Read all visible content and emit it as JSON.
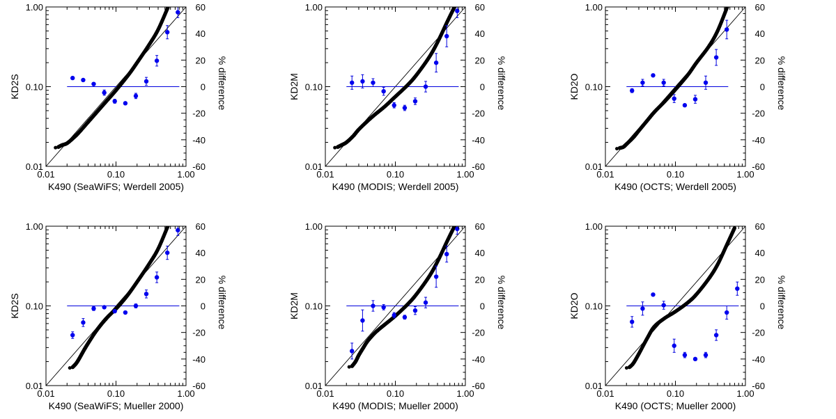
{
  "figure": {
    "axes_style": {
      "left_axis": "log",
      "right_axis_label": "% difference",
      "one_to_one_line": true,
      "zero_line_color": "#0000dd",
      "point_color_blue": "#0000ee",
      "point_color_black": "#000000"
    }
  },
  "chart_data": [
    {
      "type": "scatter",
      "title": "",
      "xlabel": "K490 (SeaWiFS; Werdell 2005)",
      "ylabel": "KD2S",
      "y2label": "% difference",
      "xscale": "log",
      "yscale": "log",
      "xlim": [
        0.01,
        1.0
      ],
      "ylim": [
        0.01,
        1.0
      ],
      "y2lim": [
        -60,
        60
      ],
      "xticks": [
        "0.01",
        "0.10",
        "1.00"
      ],
      "yticks": [
        "0.01",
        "0.10",
        "1.00"
      ],
      "y2ticks": [
        "-60",
        "-40",
        "-20",
        "0",
        "20",
        "40",
        "60"
      ],
      "series": [
        {
          "role": "scatter",
          "x": [
            0.015,
            0.017,
            0.02,
            0.025,
            0.03,
            0.04,
            0.05,
            0.07,
            0.1,
            0.15,
            0.2,
            0.3,
            0.4,
            0.55
          ],
          "y": [
            0.0175,
            0.0185,
            0.0195,
            0.023,
            0.027,
            0.036,
            0.045,
            0.063,
            0.09,
            0.14,
            0.2,
            0.34,
            0.52,
            0.98
          ]
        },
        {
          "role": "percent_difference",
          "x": [
            0.024,
            0.034,
            0.048,
            0.068,
            0.096,
            0.136,
            0.192,
            0.271,
            0.383,
            0.541,
            0.765
          ],
          "y": [
            6.5,
            5,
            2,
            -4.5,
            -11,
            -12.5,
            -7,
            4,
            19.5,
            41,
            56
          ],
          "err": [
            1,
            1,
            1,
            2,
            1.5,
            1,
            2,
            3,
            4,
            5,
            4
          ]
        }
      ]
    },
    {
      "type": "scatter",
      "title": "",
      "xlabel": "K490 (MODIS; Werdell 2005)",
      "ylabel": "KD2M",
      "y2label": "% difference",
      "xscale": "log",
      "yscale": "log",
      "xlim": [
        0.01,
        1.0
      ],
      "ylim": [
        0.01,
        1.0
      ],
      "y2lim": [
        -60,
        60
      ],
      "xticks": [
        "0.01",
        "0.10",
        "1.00"
      ],
      "yticks": [
        "0.01",
        "0.10",
        "1.00"
      ],
      "y2ticks": [
        "-60",
        "-40",
        "-20",
        "0",
        "20",
        "40",
        "60"
      ],
      "series": [
        {
          "role": "scatter",
          "x": [
            0.015,
            0.017,
            0.02,
            0.025,
            0.03,
            0.04,
            0.05,
            0.07,
            0.1,
            0.15,
            0.2,
            0.3,
            0.4,
            0.55,
            0.7
          ],
          "y": [
            0.0175,
            0.0185,
            0.02,
            0.024,
            0.029,
            0.037,
            0.044,
            0.056,
            0.075,
            0.105,
            0.14,
            0.23,
            0.36,
            0.65,
            1.0
          ]
        },
        {
          "role": "percent_difference",
          "x": [
            0.024,
            0.034,
            0.048,
            0.068,
            0.096,
            0.136,
            0.192,
            0.271,
            0.383,
            0.541,
            0.765
          ],
          "y": [
            3,
            4,
            3,
            -3.5,
            -14,
            -16,
            -11,
            0,
            18,
            38,
            57
          ],
          "err": [
            5,
            5,
            3,
            3,
            2,
            2,
            2.5,
            4,
            7,
            8,
            5
          ]
        }
      ]
    },
    {
      "type": "scatter",
      "title": "",
      "xlabel": "K490 (OCTS; Werdell 2005)",
      "ylabel": "KD2O",
      "y2label": "% difference",
      "xscale": "log",
      "yscale": "log",
      "xlim": [
        0.01,
        1.0
      ],
      "ylim": [
        0.01,
        1.0
      ],
      "y2lim": [
        -60,
        60
      ],
      "xticks": [
        "0.01",
        "0.10",
        "1.00"
      ],
      "yticks": [
        "0.01",
        "0.10",
        "1.00"
      ],
      "y2ticks": [
        "-60",
        "-40",
        "-20",
        "0",
        "20",
        "40",
        "60"
      ],
      "series": [
        {
          "role": "scatter",
          "x": [
            0.016,
            0.018,
            0.02,
            0.025,
            0.03,
            0.04,
            0.05,
            0.07,
            0.1,
            0.15,
            0.2,
            0.3,
            0.4,
            0.55
          ],
          "y": [
            0.017,
            0.0175,
            0.019,
            0.023,
            0.028,
            0.038,
            0.048,
            0.065,
            0.092,
            0.14,
            0.2,
            0.32,
            0.5,
            1.0
          ]
        },
        {
          "role": "percent_difference",
          "x": [
            0.024,
            0.034,
            0.048,
            0.068,
            0.096,
            0.136,
            0.192,
            0.271,
            0.383,
            0.541
          ],
          "y": [
            -3,
            3,
            8.5,
            3,
            -9,
            -14,
            -9.5,
            3,
            22,
            43
          ],
          "err": [
            1.5,
            2.5,
            1,
            2.5,
            3,
            1,
            3,
            5,
            6,
            7
          ]
        }
      ]
    },
    {
      "type": "scatter",
      "title": "",
      "xlabel": "K490 (SeaWiFS; Mueller 2000)",
      "ylabel": "KD2S",
      "y2label": "% difference",
      "xscale": "log",
      "yscale": "log",
      "xlim": [
        0.01,
        1.0
      ],
      "ylim": [
        0.01,
        1.0
      ],
      "y2lim": [
        -60,
        60
      ],
      "xticks": [
        "0.01",
        "0.10",
        "1.00"
      ],
      "yticks": [
        "0.01",
        "0.10",
        "1.00"
      ],
      "y2ticks": [
        "-60",
        "-40",
        "-20",
        "0",
        "20",
        "40",
        "60"
      ],
      "series": [
        {
          "role": "scatter",
          "x": [
            0.024,
            0.027,
            0.03,
            0.035,
            0.04,
            0.05,
            0.06,
            0.07,
            0.08,
            0.1,
            0.12,
            0.15,
            0.2,
            0.3,
            0.4,
            0.55
          ],
          "y": [
            0.017,
            0.019,
            0.022,
            0.028,
            0.034,
            0.046,
            0.057,
            0.067,
            0.076,
            0.092,
            0.11,
            0.14,
            0.2,
            0.34,
            0.52,
            1.0
          ]
        },
        {
          "role": "percent_difference",
          "x": [
            0.024,
            0.034,
            0.048,
            0.068,
            0.096,
            0.136,
            0.192,
            0.271,
            0.383,
            0.541,
            0.765
          ],
          "y": [
            -22,
            -12.5,
            -2,
            -1,
            -4,
            -5,
            0,
            9,
            21.5,
            40,
            57
          ],
          "err": [
            2.5,
            3,
            1.5,
            1,
            1,
            1,
            1.5,
            3,
            4,
            5,
            4
          ]
        }
      ]
    },
    {
      "type": "scatter",
      "title": "",
      "xlabel": "K490 (MODIS; Mueller 2000)",
      "ylabel": "KD2M",
      "y2label": "% difference",
      "xscale": "log",
      "yscale": "log",
      "xlim": [
        0.01,
        1.0
      ],
      "ylim": [
        0.01,
        1.0
      ],
      "y2lim": [
        -60,
        60
      ],
      "xticks": [
        "0.01",
        "0.10",
        "1.00"
      ],
      "yticks": [
        "0.01",
        "0.10",
        "1.00"
      ],
      "y2ticks": [
        "-60",
        "-40",
        "-20",
        "0",
        "20",
        "40",
        "60"
      ],
      "series": [
        {
          "role": "scatter",
          "x": [
            0.024,
            0.027,
            0.03,
            0.035,
            0.04,
            0.05,
            0.06,
            0.07,
            0.1,
            0.15,
            0.2,
            0.3,
            0.4,
            0.55,
            0.7
          ],
          "y": [
            0.0175,
            0.02,
            0.024,
            0.03,
            0.036,
            0.045,
            0.052,
            0.058,
            0.075,
            0.105,
            0.14,
            0.23,
            0.36,
            0.65,
            1.0
          ]
        },
        {
          "role": "percent_difference",
          "x": [
            0.024,
            0.034,
            0.048,
            0.068,
            0.096,
            0.136,
            0.192,
            0.271,
            0.383,
            0.541,
            0.765
          ],
          "y": [
            -34,
            -11,
            0,
            -1,
            -7,
            -8.5,
            -3.5,
            2.5,
            22,
            39,
            58
          ],
          "err": [
            6,
            8,
            4,
            2,
            2,
            1.5,
            3,
            4,
            8,
            6,
            4
          ]
        }
      ]
    },
    {
      "type": "scatter",
      "title": "",
      "xlabel": "K490 (OCTS; Mueller 2000)",
      "ylabel": "KD2O",
      "y2label": "% difference",
      "xscale": "log",
      "yscale": "log",
      "xlim": [
        0.01,
        1.0
      ],
      "ylim": [
        0.01,
        1.0
      ],
      "y2lim": [
        -60,
        60
      ],
      "xticks": [
        "0.01",
        "0.10",
        "1.00"
      ],
      "yticks": [
        "0.01",
        "0.10",
        "1.00"
      ],
      "y2ticks": [
        "-60",
        "-40",
        "-20",
        "0",
        "20",
        "40",
        "60"
      ],
      "series": [
        {
          "role": "scatter",
          "x": [
            0.022,
            0.025,
            0.03,
            0.04,
            0.05,
            0.07,
            0.1,
            0.15,
            0.2,
            0.3,
            0.4,
            0.55,
            0.7
          ],
          "y": [
            0.017,
            0.019,
            0.025,
            0.04,
            0.055,
            0.07,
            0.085,
            0.11,
            0.14,
            0.22,
            0.33,
            0.6,
            0.95
          ]
        },
        {
          "role": "percent_difference",
          "x": [
            0.024,
            0.034,
            0.048,
            0.068,
            0.096,
            0.136,
            0.192,
            0.271,
            0.383,
            0.541,
            0.765
          ],
          "y": [
            -12,
            -2,
            8.5,
            0.5,
            -30,
            -37,
            -40,
            -37,
            -22,
            -5,
            13
          ],
          "err": [
            4,
            5,
            1,
            3,
            5,
            2,
            1,
            2,
            4,
            5,
            5
          ]
        }
      ]
    }
  ]
}
